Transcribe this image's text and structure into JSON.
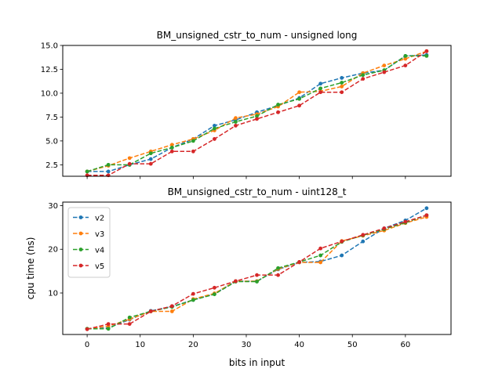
{
  "chart_data": [
    {
      "type": "line",
      "title": "BM_unsigned_cstr_to_num - unsigned long",
      "xlabel": "",
      "ylabel": "",
      "xlim": [
        -4.6,
        68.6
      ],
      "ylim": [
        1.3,
        15.0
      ],
      "xticks": [
        0,
        10,
        20,
        30,
        40,
        50,
        60
      ],
      "xticklabels": [
        "",
        "",
        "",
        "",
        "",
        "",
        ""
      ],
      "yticks": [
        2.5,
        5.0,
        7.5,
        10.0,
        12.5,
        15.0
      ],
      "yticklabels": [
        "2.5",
        "5.0",
        "7.5",
        "10.0",
        "12.5",
        "15.0"
      ],
      "grid": false,
      "x": [
        0,
        4,
        8,
        12,
        16,
        20,
        24,
        28,
        32,
        36,
        40,
        44,
        48,
        52,
        56,
        60,
        64
      ],
      "series": [
        {
          "key": "v2",
          "color": "#1f77b4",
          "values": [
            1.8,
            1.8,
            2.5,
            3.1,
            4.3,
            5.2,
            6.6,
            7.2,
            8.0,
            8.7,
            9.5,
            11.0,
            11.6,
            12.1,
            12.4,
            13.9,
            14.0
          ]
        },
        {
          "key": "v3",
          "color": "#ff7f0e",
          "values": [
            1.8,
            2.4,
            3.2,
            3.9,
            4.6,
            5.2,
            6.1,
            7.4,
            7.8,
            8.6,
            10.1,
            10.2,
            10.7,
            12.1,
            12.9,
            13.6,
            14.4
          ]
        },
        {
          "key": "v4",
          "color": "#2ca02c",
          "values": [
            1.8,
            2.5,
            2.5,
            3.7,
            4.3,
            5.0,
            6.3,
            7.0,
            7.6,
            8.8,
            9.4,
            10.5,
            11.1,
            11.9,
            12.4,
            13.9,
            13.9
          ]
        },
        {
          "key": "v5",
          "color": "#d62728",
          "values": [
            1.4,
            1.4,
            2.6,
            2.6,
            3.9,
            3.9,
            5.2,
            6.6,
            7.3,
            8.0,
            8.7,
            10.1,
            10.1,
            11.5,
            12.2,
            12.9,
            14.4
          ]
        }
      ]
    },
    {
      "type": "line",
      "title": "BM_unsigned_cstr_to_num - uint128_t",
      "xlabel": "bits in input",
      "ylabel": "cpu time (ns)",
      "xlim": [
        -4.6,
        68.6
      ],
      "ylim": [
        0.5,
        30.8
      ],
      "xticks": [
        0,
        10,
        20,
        30,
        40,
        50,
        60
      ],
      "xticklabels": [
        "0",
        "10",
        "20",
        "30",
        "40",
        "50",
        "60"
      ],
      "yticks": [
        10,
        20,
        30
      ],
      "yticklabels": [
        "10",
        "20",
        "30"
      ],
      "grid": false,
      "legend": {
        "position": "upper-left",
        "entries": [
          "v2",
          "v3",
          "v4",
          "v5"
        ]
      },
      "x": [
        0,
        4,
        8,
        12,
        16,
        20,
        24,
        28,
        32,
        36,
        40,
        44,
        48,
        52,
        56,
        60,
        64
      ],
      "series": [
        {
          "name": "v2",
          "color": "#1f77b4",
          "values": [
            1.8,
            2.0,
            3.9,
            5.9,
            6.9,
            8.4,
            9.8,
            12.7,
            12.7,
            15.4,
            17.0,
            17.2,
            18.6,
            21.8,
            24.8,
            26.6,
            29.4
          ]
        },
        {
          "name": "v3",
          "color": "#ff7f0e",
          "values": [
            1.8,
            2.4,
            4.0,
            5.8,
            5.8,
            8.6,
            9.9,
            12.7,
            12.7,
            15.5,
            17.0,
            17.0,
            21.9,
            23.1,
            24.3,
            26.0,
            27.4
          ]
        },
        {
          "name": "v4",
          "color": "#2ca02c",
          "values": [
            1.8,
            1.8,
            4.4,
            5.8,
            6.8,
            8.4,
            9.7,
            12.6,
            12.6,
            15.7,
            17.1,
            18.6,
            21.7,
            23.2,
            24.6,
            26.1,
            27.8
          ]
        },
        {
          "name": "v5",
          "color": "#d62728",
          "values": [
            1.7,
            2.9,
            2.9,
            5.8,
            7.0,
            9.8,
            11.2,
            12.7,
            14.1,
            14.1,
            17.1,
            20.2,
            21.8,
            23.3,
            24.8,
            26.3,
            27.8
          ]
        }
      ]
    }
  ]
}
